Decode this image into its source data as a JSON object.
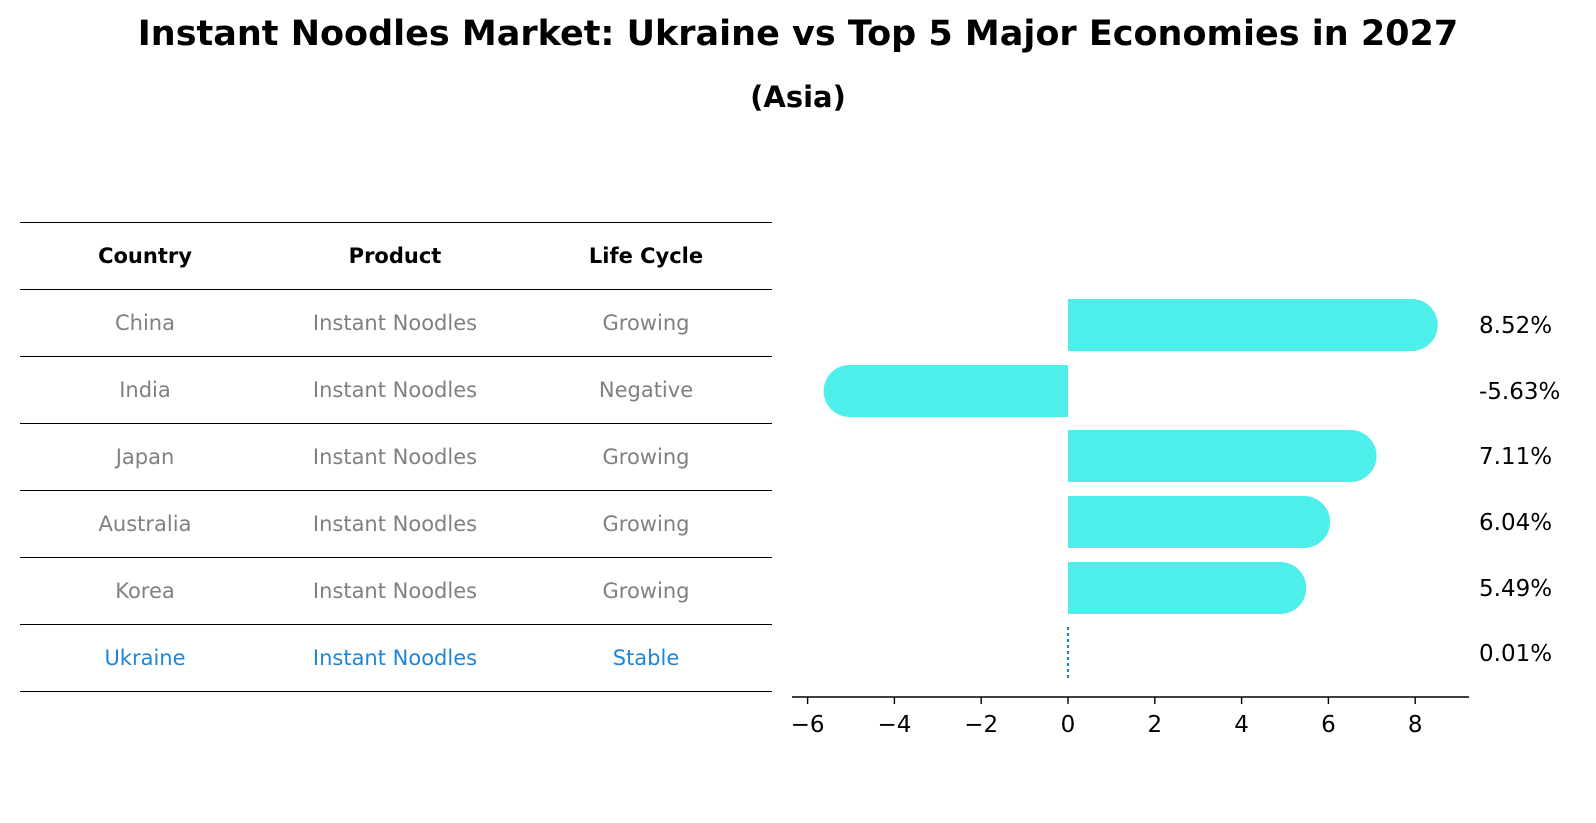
{
  "title": "Instant Noodles Market: Ukraine vs Top 5 Major Economies in 2027",
  "subtitle": "(Asia)",
  "table": {
    "headers": [
      "Country",
      "Product",
      "Life Cycle"
    ],
    "rows": [
      [
        "China",
        "Instant Noodles",
        "Growing"
      ],
      [
        "India",
        "Instant Noodles",
        "Negative"
      ],
      [
        "Japan",
        "Instant Noodles",
        "Growing"
      ],
      [
        "Australia",
        "Instant Noodles",
        "Growing"
      ],
      [
        "Korea",
        "Instant Noodles",
        "Growing"
      ],
      [
        "Ukraine",
        "Instant Noodles",
        "Stable"
      ]
    ],
    "highlight_row": 5
  },
  "colors": {
    "bar": "#4eeeea",
    "highlight": "#1f85d6",
    "muted": "#808080",
    "axis": "#000000"
  },
  "chart_data": {
    "type": "bar",
    "orientation": "horizontal",
    "categories": [
      "China",
      "India",
      "Japan",
      "Australia",
      "Korea",
      "Ukraine"
    ],
    "values": [
      8.52,
      -5.63,
      7.11,
      6.04,
      5.49,
      0.01
    ],
    "value_labels": [
      "8.52%",
      "-5.63%",
      "7.11%",
      "6.04%",
      "5.49%",
      "0.01%"
    ],
    "xticks": [
      -6,
      -4,
      -2,
      0,
      2,
      4,
      6,
      8
    ],
    "xlim": [
      -6.3,
      9.3
    ],
    "xlabel": "",
    "ylabel": ""
  }
}
